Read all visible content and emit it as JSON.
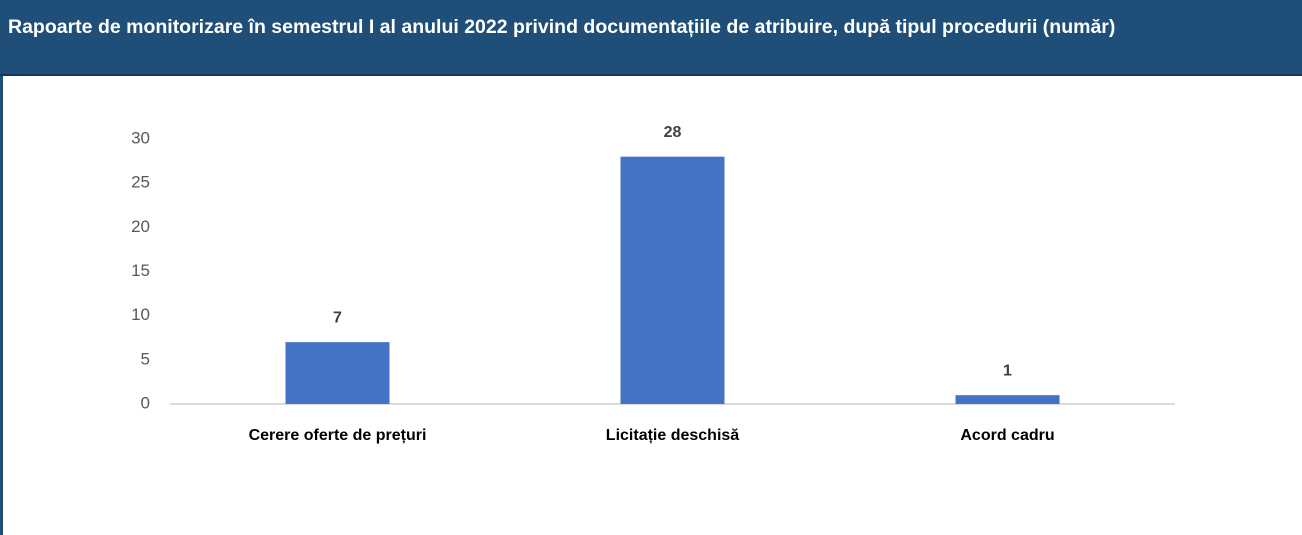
{
  "chart_data": {
    "type": "bar",
    "title": "Rapoarte de monitorizare în semestrul I al anului 2022 privind documentațiile de atribuire, după tipul procedurii (număr)",
    "categories": [
      "Cerere oferte de prețuri",
      "Licitație deschisă",
      "Acord cadru"
    ],
    "values": [
      7,
      28,
      1
    ],
    "color": "#4472c4",
    "ylim": [
      0,
      30
    ],
    "yticks": [
      0,
      5,
      10,
      15,
      20,
      25,
      30
    ],
    "grid": false
  }
}
